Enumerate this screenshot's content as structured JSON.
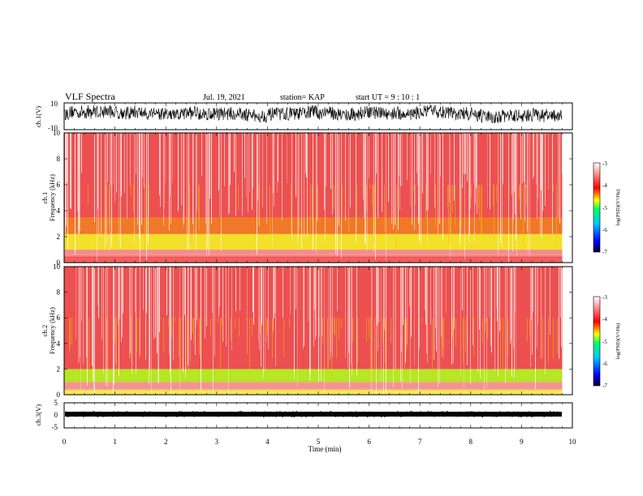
{
  "header": {
    "title": "VLF Spectra",
    "date": "Jul. 19, 2021",
    "station": "station= KAP",
    "start_time": "start  UT =   9 : 10 : 1"
  },
  "colors": {
    "waveform": "#000000",
    "spectral_background": "#e83a3a",
    "colormap": [
      "#000033",
      "#0000ff",
      "#00c8ff",
      "#00ff66",
      "#ffff00",
      "#ff0000",
      "#ffffff"
    ]
  },
  "chart_data": [
    {
      "type": "line",
      "name": "ch1-waveform",
      "ylabel": "ch.1(V)",
      "ylim": [
        -10,
        10
      ],
      "ytick_labels": [
        "10",
        "-10"
      ],
      "xlim": [
        0,
        10
      ],
      "data_extent_x": [
        0,
        9.8
      ],
      "description": "noisy waveform between roughly -5 and 9 V"
    },
    {
      "type": "heatmap",
      "name": "ch1-spectrogram",
      "ylabel": "ch.1\nFrequency  (kHz)",
      "ylim": [
        0,
        10
      ],
      "ytick_labels": [
        "0",
        "2",
        "4",
        "6",
        "8",
        "10"
      ],
      "xlim": [
        0,
        9.8
      ],
      "colorbar": {
        "label": "log(PSD)(V²/Hz)",
        "range": [
          -7,
          -3
        ],
        "tick_labels": [
          "-3",
          "-4",
          "-5",
          "-6",
          "-7"
        ]
      },
      "bands": [
        {
          "freq_khz": [
            0.0,
            0.5
          ],
          "level": "red"
        },
        {
          "freq_khz": [
            0.5,
            1.0
          ],
          "level": "red-white striped"
        },
        {
          "freq_khz": [
            1.0,
            2.2
          ],
          "level": "yellow"
        },
        {
          "freq_khz": [
            2.2,
            3.5
          ],
          "level": "orange"
        },
        {
          "freq_khz": [
            3.5,
            10.0
          ],
          "level": "red with white vertical streaks"
        }
      ]
    },
    {
      "type": "heatmap",
      "name": "ch2-spectrogram",
      "ylabel": "ch.2\nFrequency  (kHz)",
      "ylim": [
        0,
        10
      ],
      "ytick_labels": [
        "0",
        "2",
        "4",
        "6",
        "8",
        "10"
      ],
      "xlim": [
        0,
        9.8
      ],
      "colorbar": {
        "label": "log(PSD)(V²/Hz)",
        "range": [
          -7,
          -3
        ],
        "tick_labels": [
          "-3",
          "-4",
          "-5",
          "-6",
          "-7"
        ]
      },
      "bands": [
        {
          "freq_khz": [
            0.0,
            0.4
          ],
          "level": "yellow"
        },
        {
          "freq_khz": [
            0.4,
            1.0
          ],
          "level": "red-white striped"
        },
        {
          "freq_khz": [
            1.0,
            2.0
          ],
          "level": "green-yellow"
        },
        {
          "freq_khz": [
            2.0,
            10.0
          ],
          "level": "red with white vertical streaks"
        }
      ]
    },
    {
      "type": "line",
      "name": "ch3-waveform",
      "ylabel": "ch.3(V)",
      "ylim": [
        -5,
        5
      ],
      "ytick_labels": [
        "5",
        "0",
        "-5"
      ],
      "xlim": [
        0,
        10
      ],
      "data_extent_x": [
        0,
        9.8
      ],
      "description": "narrow band near 0 V"
    }
  ],
  "x_axis": {
    "label": "Time  (min)",
    "ticks": [
      0,
      1,
      2,
      3,
      4,
      5,
      6,
      7,
      8,
      9,
      10
    ],
    "tick_labels": [
      "0",
      "1",
      "2",
      "3",
      "4",
      "5",
      "6",
      "7",
      "8",
      "9",
      "10"
    ]
  }
}
